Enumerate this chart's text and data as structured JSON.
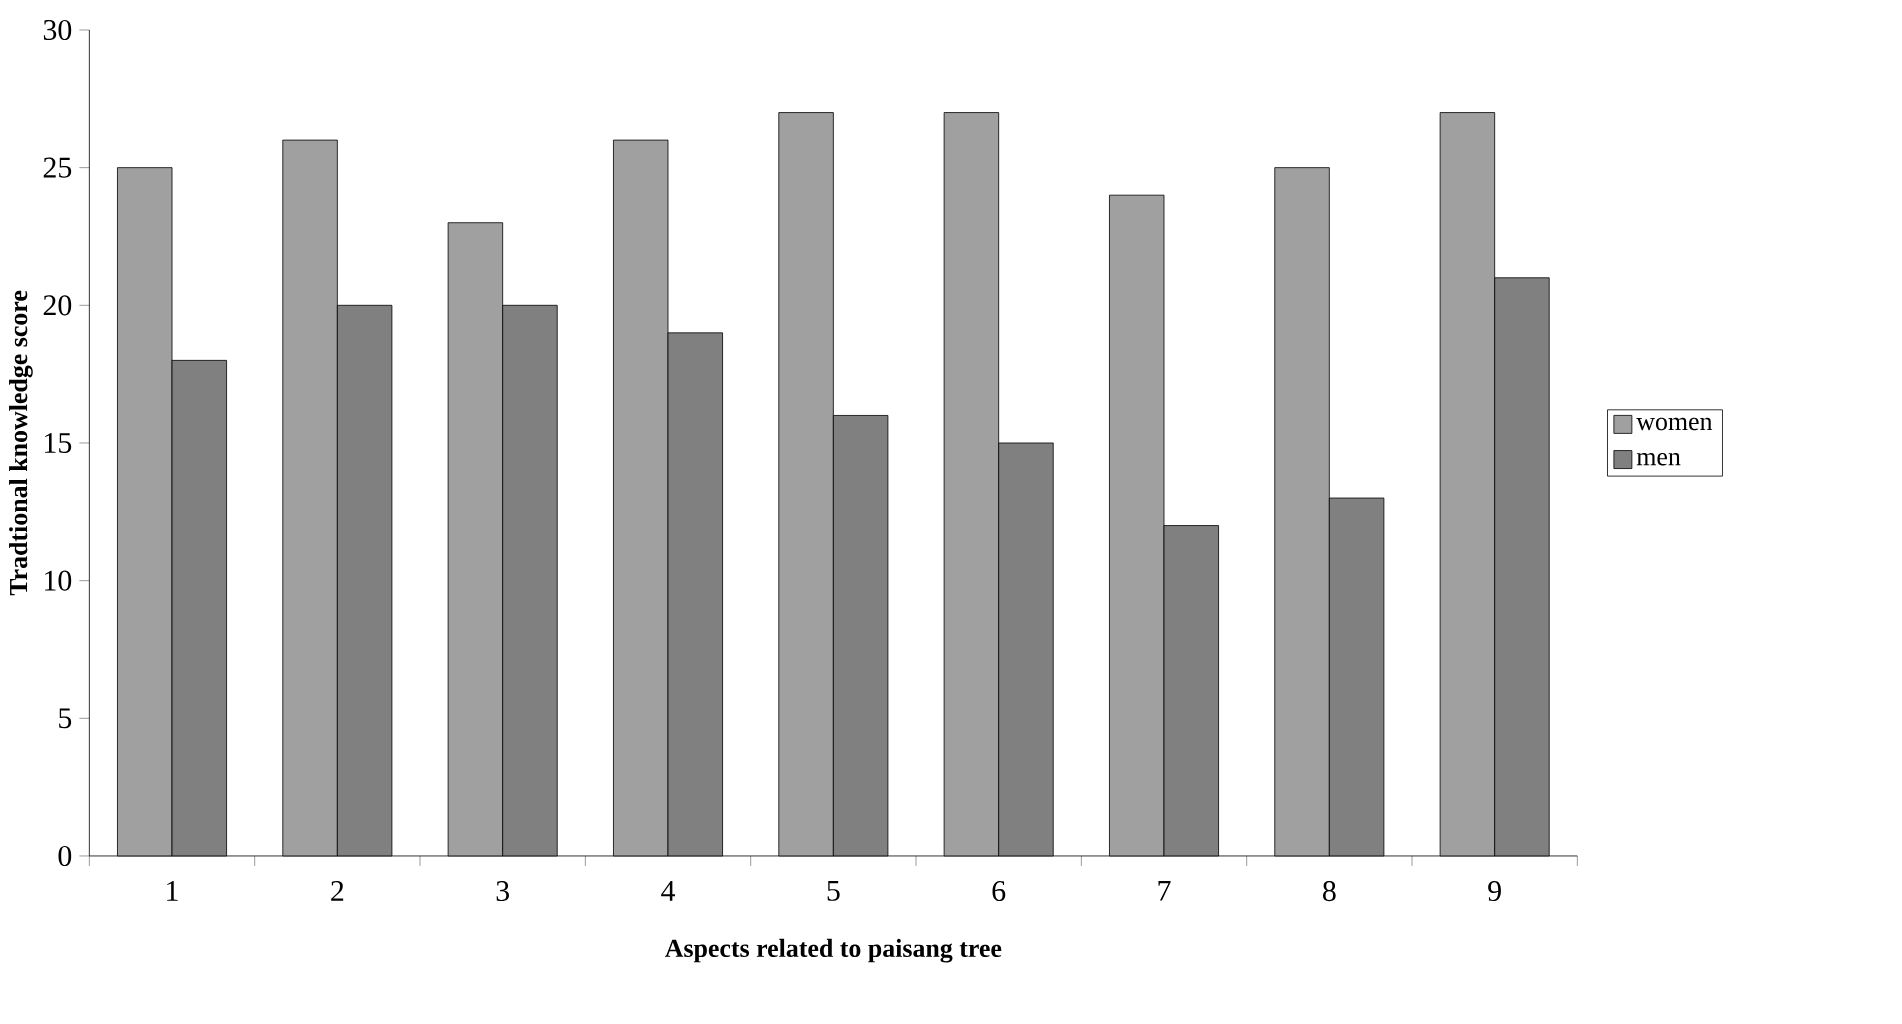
{
  "chart_data": {
    "type": "bar",
    "xlabel": "Aspects related to paisang tree",
    "ylabel": "Tradtional knowledge score",
    "categories": [
      "1",
      "2",
      "3",
      "4",
      "5",
      "6",
      "7",
      "8",
      "9"
    ],
    "series": [
      {
        "name": "women",
        "color": "#a0a0a0",
        "values": [
          25,
          26,
          23,
          26,
          27,
          27,
          24,
          25,
          27
        ]
      },
      {
        "name": "men",
        "color": "#808080",
        "values": [
          18,
          20,
          20,
          19,
          16,
          15,
          12,
          13,
          21
        ]
      }
    ],
    "ylim": [
      0,
      30
    ],
    "yticks": [
      0,
      5,
      10,
      15,
      20,
      25,
      30
    ],
    "grid": false,
    "legend": "right"
  }
}
